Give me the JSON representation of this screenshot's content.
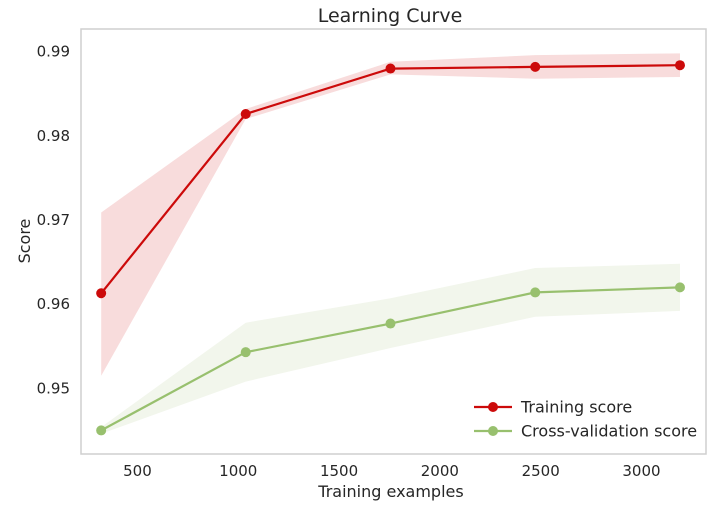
{
  "chart_data": {
    "type": "line",
    "title": "Learning Curve",
    "xlabel": "Training examples",
    "ylabel": "Score",
    "xlim": [
      220,
      3320
    ],
    "ylim": [
      0.9422,
      0.9927
    ],
    "xticks": [
      500,
      1000,
      1500,
      2000,
      2500,
      3000
    ],
    "yticks": [
      0.95,
      0.96,
      0.97,
      0.98,
      0.99
    ],
    "grid": false,
    "legend_position": "bottom-right",
    "x": [
      320,
      1037,
      1755,
      2473,
      3191
    ],
    "series": [
      {
        "name": "Training score",
        "color": "#cc0a0a",
        "band_color": "#f8dcdc",
        "values": [
          0.9613,
          0.9826,
          0.988,
          0.9882,
          0.9884
        ],
        "lower": [
          0.9515,
          0.982,
          0.9873,
          0.9868,
          0.987
        ],
        "upper": [
          0.9709,
          0.9832,
          0.9888,
          0.9896,
          0.9898
        ]
      },
      {
        "name": "Cross-validation score",
        "color": "#98c06e",
        "band_color": "#f2f6ec",
        "values": [
          0.945,
          0.9543,
          0.9577,
          0.9614,
          0.962
        ],
        "lower": [
          0.9446,
          0.9508,
          0.9548,
          0.9585,
          0.9592
        ],
        "upper": [
          0.9454,
          0.9578,
          0.9607,
          0.9643,
          0.9648
        ]
      }
    ]
  }
}
